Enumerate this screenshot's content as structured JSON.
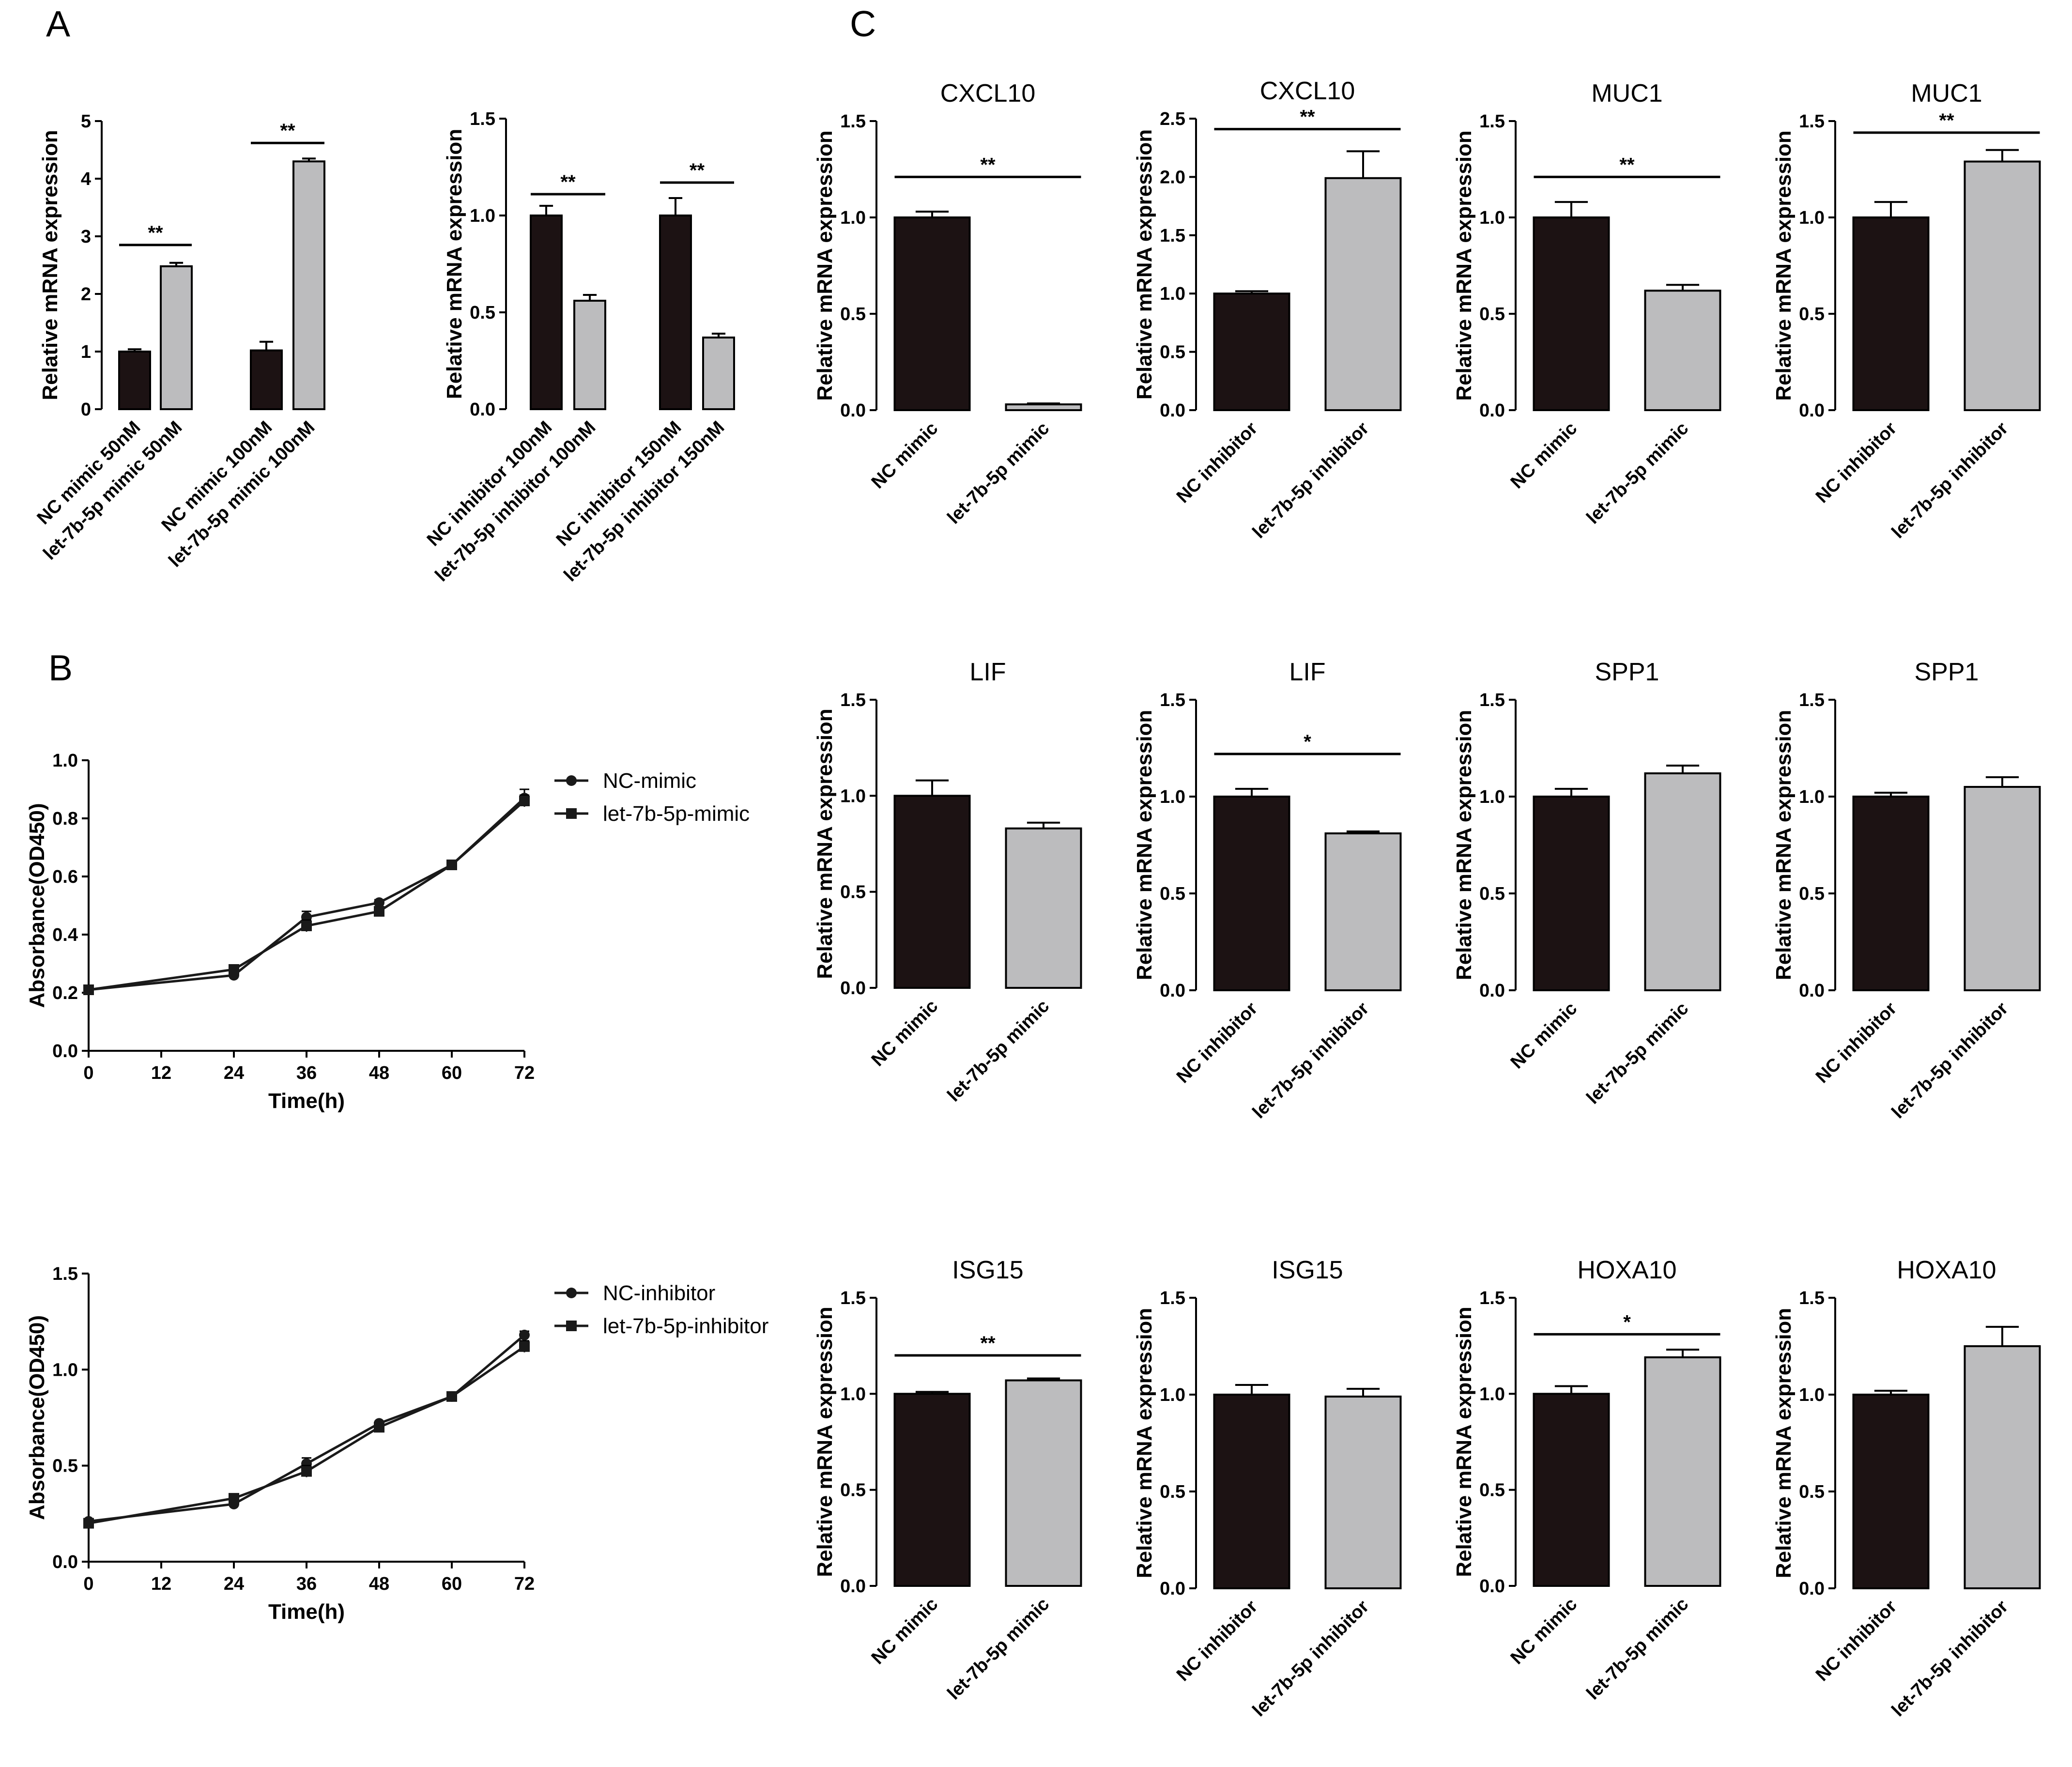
{
  "panels": {
    "A": "A",
    "B": "B",
    "C": "C"
  },
  "colors": {
    "dark": "#1c1213",
    "light": "#bcbcbe",
    "axis": "#000000"
  },
  "chart_data": [
    {
      "id": "A1",
      "type": "bar",
      "title": "",
      "ylabel": "Relative mRNA expression",
      "ylim": [
        0,
        5
      ],
      "yticks": [
        0,
        1,
        2,
        3,
        4,
        5
      ],
      "categories": [
        "NC mimic 50nM",
        "let-7b-5p mimic 50nM",
        "NC mimic 100nM",
        "let-7b-5p mimic 100nM"
      ],
      "values": [
        1.0,
        2.48,
        1.02,
        4.3
      ],
      "errors": [
        0.04,
        0.06,
        0.15,
        0.05
      ],
      "colors": [
        "dark",
        "light",
        "dark",
        "light"
      ],
      "significance": [
        {
          "from": 0,
          "to": 1,
          "y": 2.85,
          "label": "**"
        },
        {
          "from": 2,
          "to": 3,
          "y": 4.62,
          "label": "**"
        }
      ]
    },
    {
      "id": "A2",
      "type": "bar",
      "title": "",
      "ylabel": "Relative mRNA expression",
      "ylim": [
        0,
        1.5
      ],
      "yticks": [
        "0.0",
        "0.5",
        "1.0",
        "1.5"
      ],
      "categories": [
        "NC inhibitor 100nM",
        "let-7b-5p inhibitor 100nM",
        "NC inhibitor 150nM",
        "let-7b-5p inhibitor 150nM"
      ],
      "values": [
        1.0,
        0.56,
        1.0,
        0.37
      ],
      "errors": [
        0.05,
        0.03,
        0.09,
        0.02
      ],
      "colors": [
        "dark",
        "light",
        "dark",
        "light"
      ],
      "significance": [
        {
          "from": 0,
          "to": 1,
          "y": 1.11,
          "label": "**"
        },
        {
          "from": 2,
          "to": 3,
          "y": 1.17,
          "label": "**"
        }
      ]
    },
    {
      "id": "B1",
      "type": "line",
      "title": "",
      "xlabel": "Time(h)",
      "ylabel": "Absorbance(OD450)",
      "xlim": [
        0,
        72
      ],
      "xticks": [
        "0",
        "12",
        "24",
        "36",
        "48",
        "60",
        "72"
      ],
      "ylim": [
        0,
        1.0
      ],
      "yticks": [
        "0.0",
        "0.2",
        "0.4",
        "0.6",
        "0.8",
        "1.0"
      ],
      "x": [
        0,
        24,
        36,
        48,
        60,
        72
      ],
      "series": [
        {
          "name": "NC-mimic",
          "marker": "circle",
          "values": [
            0.21,
            0.26,
            0.46,
            0.51,
            0.64,
            0.87
          ],
          "errors": [
            0.01,
            0.01,
            0.02,
            0.01,
            0.01,
            0.03
          ]
        },
        {
          "name": "let-7b-5p-mimic",
          "marker": "square",
          "values": [
            0.21,
            0.28,
            0.43,
            0.48,
            0.64,
            0.86
          ],
          "errors": [
            0.01,
            0.01,
            0.02,
            0.01,
            0.01,
            0.02
          ]
        }
      ],
      "legend": "right"
    },
    {
      "id": "B2",
      "type": "line",
      "title": "",
      "xlabel": "Time(h)",
      "ylabel": "Absorbance(OD450)",
      "xlim": [
        0,
        72
      ],
      "xticks": [
        "0",
        "12",
        "24",
        "36",
        "48",
        "60",
        "72"
      ],
      "ylim": [
        0,
        1.5
      ],
      "yticks": [
        "0.0",
        "0.5",
        "1.0",
        "1.5"
      ],
      "x": [
        0,
        24,
        36,
        48,
        60,
        72
      ],
      "series": [
        {
          "name": "NC-inhibitor",
          "marker": "circle",
          "values": [
            0.21,
            0.3,
            0.51,
            0.72,
            0.86,
            1.18
          ],
          "errors": [
            0.01,
            0.01,
            0.03,
            0.01,
            0.01,
            0.02
          ]
        },
        {
          "name": "let-7b-5p-inhibitor",
          "marker": "square",
          "values": [
            0.2,
            0.33,
            0.47,
            0.7,
            0.86,
            1.12
          ],
          "errors": [
            0.01,
            0.01,
            0.03,
            0.01,
            0.01,
            0.03
          ]
        }
      ],
      "legend": "right"
    },
    {
      "id": "C1",
      "type": "bar",
      "title": "CXCL10",
      "ylabel": "Relative mRNA expression",
      "ylim": [
        0,
        1.5
      ],
      "yticks": [
        "0.0",
        "0.5",
        "1.0",
        "1.5"
      ],
      "categories": [
        "NC mimic",
        "let-7b-5p mimic"
      ],
      "values": [
        1.0,
        0.03
      ],
      "errors": [
        0.03,
        0.005
      ],
      "colors": [
        "dark",
        "light"
      ],
      "significance": [
        {
          "from": 0,
          "to": 1,
          "y": 1.21,
          "label": "**"
        }
      ]
    },
    {
      "id": "C2",
      "type": "bar",
      "title": "CXCL10",
      "ylabel": "Relative mRNA expression",
      "ylim": [
        0,
        2.5
      ],
      "yticks": [
        "0.0",
        "0.5",
        "1.0",
        "1.5",
        "2.0",
        "2.5"
      ],
      "categories": [
        "NC inhibitor",
        "let-7b-5p inhibitor"
      ],
      "values": [
        1.0,
        1.99
      ],
      "errors": [
        0.02,
        0.23
      ],
      "colors": [
        "dark",
        "light"
      ],
      "significance": [
        {
          "from": 0,
          "to": 1,
          "y": 2.41,
          "label": "**"
        }
      ]
    },
    {
      "id": "C3",
      "type": "bar",
      "title": "MUC1",
      "ylabel": "Relative mRNA expression",
      "ylim": [
        0,
        1.5
      ],
      "yticks": [
        "0.0",
        "0.5",
        "1.0",
        "1.5"
      ],
      "categories": [
        "NC mimic",
        "let-7b-5p mimic"
      ],
      "values": [
        1.0,
        0.62
      ],
      "errors": [
        0.08,
        0.03
      ],
      "colors": [
        "dark",
        "light"
      ],
      "significance": [
        {
          "from": 0,
          "to": 1,
          "y": 1.21,
          "label": "**"
        }
      ]
    },
    {
      "id": "C4",
      "type": "bar",
      "title": "MUC1",
      "ylabel": "Relative mRNA expression",
      "ylim": [
        0,
        1.5
      ],
      "yticks": [
        "0.0",
        "0.5",
        "1.0",
        "1.5"
      ],
      "categories": [
        "NC inhibitor",
        "let-7b-5p inhibitor"
      ],
      "values": [
        1.0,
        1.29
      ],
      "errors": [
        0.08,
        0.06
      ],
      "colors": [
        "dark",
        "light"
      ],
      "significance": [
        {
          "from": 0,
          "to": 1,
          "y": 1.44,
          "label": "**"
        }
      ]
    },
    {
      "id": "C5",
      "type": "bar",
      "title": "LIF",
      "ylabel": "Relative mRNA expression",
      "ylim": [
        0,
        1.5
      ],
      "yticks": [
        "0.0",
        "0.5",
        "1.0",
        "1.5"
      ],
      "categories": [
        "NC mimic",
        "let-7b-5p mimic"
      ],
      "values": [
        1.0,
        0.83
      ],
      "errors": [
        0.08,
        0.03
      ],
      "colors": [
        "dark",
        "light"
      ],
      "significance": []
    },
    {
      "id": "C6",
      "type": "bar",
      "title": "LIF",
      "ylabel": "Relative mRNA expression",
      "ylim": [
        0,
        1.5
      ],
      "yticks": [
        "0.0",
        "0.5",
        "1.0",
        "1.5"
      ],
      "categories": [
        "NC inhibitor",
        "let-7b-5p inhibitor"
      ],
      "values": [
        1.0,
        0.81
      ],
      "errors": [
        0.04,
        0.01
      ],
      "colors": [
        "dark",
        "light"
      ],
      "significance": [
        {
          "from": 0,
          "to": 1,
          "y": 1.22,
          "label": "*"
        }
      ]
    },
    {
      "id": "C7",
      "type": "bar",
      "title": "SPP1",
      "ylabel": "Relative mRNA expression",
      "ylim": [
        0,
        1.5
      ],
      "yticks": [
        "0.0",
        "0.5",
        "1.0",
        "1.5"
      ],
      "categories": [
        "NC mimic",
        "let-7b-5p mimic"
      ],
      "values": [
        1.0,
        1.12
      ],
      "errors": [
        0.04,
        0.04
      ],
      "colors": [
        "dark",
        "light"
      ],
      "significance": []
    },
    {
      "id": "C8",
      "type": "bar",
      "title": "SPP1",
      "ylabel": "Relative mRNA expression",
      "ylim": [
        0,
        1.5
      ],
      "yticks": [
        "0.0",
        "0.5",
        "1.0",
        "1.5"
      ],
      "categories": [
        "NC inhibitor",
        "let-7b-5p inhibitor"
      ],
      "values": [
        1.0,
        1.05
      ],
      "errors": [
        0.02,
        0.05
      ],
      "colors": [
        "dark",
        "light"
      ],
      "significance": []
    },
    {
      "id": "C9",
      "type": "bar",
      "title": "ISG15",
      "ylabel": "Relative mRNA expression",
      "ylim": [
        0,
        1.5
      ],
      "yticks": [
        "0.0",
        "0.5",
        "1.0",
        "1.5"
      ],
      "categories": [
        "NC mimic",
        "let-7b-5p mimic"
      ],
      "values": [
        1.0,
        1.07
      ],
      "errors": [
        0.01,
        0.01
      ],
      "colors": [
        "dark",
        "light"
      ],
      "significance": [
        {
          "from": 0,
          "to": 1,
          "y": 1.2,
          "label": "**"
        }
      ]
    },
    {
      "id": "C10",
      "type": "bar",
      "title": "ISG15",
      "ylabel": "Relative mRNA expression",
      "ylim": [
        0,
        1.5
      ],
      "yticks": [
        "0.0",
        "0.5",
        "1.0",
        "1.5"
      ],
      "categories": [
        "NC inhibitor",
        "let-7b-5p inhibitor"
      ],
      "values": [
        1.0,
        0.99
      ],
      "errors": [
        0.05,
        0.04
      ],
      "colors": [
        "dark",
        "light"
      ],
      "significance": []
    },
    {
      "id": "C11",
      "type": "bar",
      "title": "HOXA10",
      "ylabel": "Relative mRNA expression",
      "ylim": [
        0,
        1.5
      ],
      "yticks": [
        "0.0",
        "0.5",
        "1.0",
        "1.5"
      ],
      "categories": [
        "NC mimic",
        "let-7b-5p mimic"
      ],
      "values": [
        1.0,
        1.19
      ],
      "errors": [
        0.04,
        0.04
      ],
      "colors": [
        "dark",
        "light"
      ],
      "significance": [
        {
          "from": 0,
          "to": 1,
          "y": 1.31,
          "label": "*"
        }
      ]
    },
    {
      "id": "C12",
      "type": "bar",
      "title": "HOXA10",
      "ylabel": "Relative mRNA expression",
      "ylim": [
        0,
        1.5
      ],
      "yticks": [
        "0.0",
        "0.5",
        "1.0",
        "1.5"
      ],
      "categories": [
        "NC inhibitor",
        "let-7b-5p inhibitor"
      ],
      "values": [
        1.0,
        1.25
      ],
      "errors": [
        0.02,
        0.1
      ],
      "colors": [
        "dark",
        "light"
      ],
      "significance": []
    }
  ]
}
